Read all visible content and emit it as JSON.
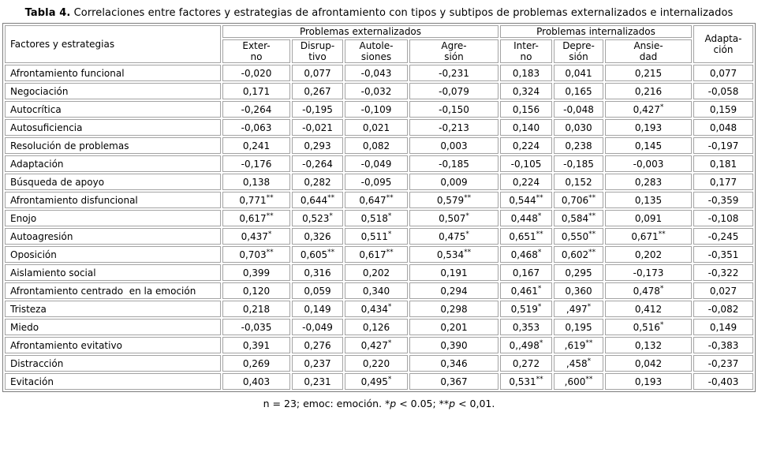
{
  "title": {
    "prefix": "Tabla 4.",
    "text": " Correlaciones entre factores y estrategias de afrontamiento con tipos y subtipos de problemas externalizados e internalizados"
  },
  "table": {
    "row_header": "Factores y estrategias",
    "groups": [
      {
        "label": "Problemas externalizados",
        "cols": [
          "Exter-\nno",
          "Disrup-\ntivo",
          "Autole-\nsiones",
          "Agre-\nsión"
        ]
      },
      {
        "label": "Problemas internalizados",
        "cols": [
          "Inter-\nno",
          "Depre-\nsión",
          "Ansie-\ndad"
        ]
      }
    ],
    "last_col": "Adapta-\nción",
    "rows": [
      {
        "label": "Afrontamiento funcional",
        "values": [
          "-0,020",
          "0,077",
          "-0,043",
          "-0,231",
          "0,183",
          "0,041",
          "0,215",
          "0,077"
        ]
      },
      {
        "label": "Negociación",
        "values": [
          "0,171",
          "0,267",
          "-0,032",
          "-0,079",
          "0,324",
          "0,165",
          "0,216",
          "-0,058"
        ]
      },
      {
        "label": "Autocrítica",
        "values": [
          "-0,264",
          "-0,195",
          "-0,109",
          "-0,150",
          "0,156",
          "-0,048",
          "0,427*",
          "0,159"
        ]
      },
      {
        "label": "Autosuficiencia",
        "values": [
          "-0,063",
          "-0,021",
          "0,021",
          "-0,213",
          "0,140",
          "0,030",
          "0,193",
          "0,048"
        ]
      },
      {
        "label": "Resolución de problemas",
        "values": [
          "0,241",
          "0,293",
          "0,082",
          "0,003",
          "0,224",
          "0,238",
          "0,145",
          "-0,197"
        ]
      },
      {
        "label": "Adaptación",
        "values": [
          "-0,176",
          "-0,264",
          "-0,049",
          "-0,185",
          "-0,105",
          "-0,185",
          "-0,003",
          "0,181"
        ]
      },
      {
        "label": "Búsqueda de apoyo",
        "values": [
          "0,138",
          "0,282",
          "-0,095",
          "0,009",
          "0,224",
          "0,152",
          "0,283",
          "0,177"
        ]
      },
      {
        "label": "Afrontamiento disfuncional",
        "values": [
          "0,771**",
          "0,644**",
          "0,647**",
          "0,579**",
          "0,544**",
          "0,706**",
          "0,135",
          "-0,359"
        ]
      },
      {
        "label": "Enojo",
        "values": [
          "0,617**",
          "0,523*",
          "0,518*",
          "0,507*",
          "0,448*",
          "0,584**",
          "0,091",
          "-0,108"
        ]
      },
      {
        "label": "Autoagresión",
        "values": [
          "0,437*",
          "0,326",
          "0,511*",
          "0,475*",
          "0,651**",
          "0,550**",
          "0,671**",
          "-0,245"
        ]
      },
      {
        "label": "Oposición",
        "values": [
          "0,703**",
          "0,605**",
          "0,617**",
          "0,534**",
          "0,468*",
          "0,602**",
          "0,202",
          "-0,351"
        ]
      },
      {
        "label": "Aislamiento social",
        "values": [
          "0,399",
          "0,316",
          "0,202",
          "0,191",
          "0,167",
          "0,295",
          "-0,173",
          "-0,322"
        ]
      },
      {
        "label": "Afrontamiento centrado  en la emoción",
        "values": [
          "0,120",
          "0,059",
          "0,340",
          "0,294",
          "0,461*",
          "0,360",
          "0,478*",
          "0,027"
        ]
      },
      {
        "label": "Tristeza",
        "values": [
          "0,218",
          "0,149",
          "0,434*",
          "0,298",
          "0,519*",
          ",497*",
          "0,412",
          "-0,082"
        ]
      },
      {
        "label": "Miedo",
        "values": [
          "-0,035",
          "-0,049",
          "0,126",
          "0,201",
          "0,353",
          "0,195",
          "0,516*",
          "0,149"
        ]
      },
      {
        "label": "Afrontamiento evitativo",
        "values": [
          "0,391",
          "0,276",
          "0,427*",
          "0,390",
          "0,,498*",
          ",619**",
          "0,132",
          "-0,383"
        ]
      },
      {
        "label": "Distracción",
        "values": [
          "0,269",
          "0,237",
          "0,220",
          "0,346",
          "0,272",
          ",458*",
          "0,042",
          "-0,237"
        ]
      },
      {
        "label": "Evitación",
        "values": [
          "0,403",
          "0,231",
          "0,495*",
          "0,367",
          "0,531**",
          ",600**",
          "0,193",
          "-0,403"
        ]
      }
    ]
  },
  "footnote": {
    "segments": [
      {
        "text": "n = 23; emoc: emoción. *",
        "italic": false
      },
      {
        "text": "p",
        "italic": true
      },
      {
        "text": " < 0.05; **",
        "italic": false
      },
      {
        "text": "p",
        "italic": true
      },
      {
        "text": " < 0,01.",
        "italic": false
      }
    ]
  }
}
